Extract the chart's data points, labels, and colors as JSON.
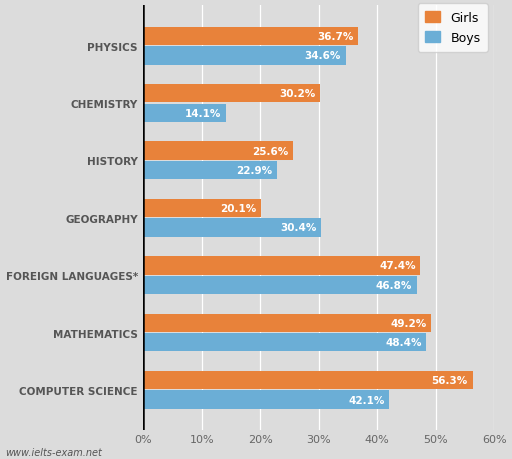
{
  "categories": [
    "PHYSICS",
    "CHEMISTRY",
    "HISTORY",
    "GEOGRAPHY",
    "FOREIGN LANGUAGES*",
    "MATHEMATICS",
    "COMPUTER SCIENCE"
  ],
  "girls_values": [
    36.7,
    30.2,
    25.6,
    20.1,
    47.4,
    49.2,
    56.3
  ],
  "boys_values": [
    34.6,
    14.1,
    22.9,
    30.4,
    46.8,
    48.4,
    42.1
  ],
  "girls_color": "#E8823A",
  "boys_color": "#6BAED6",
  "girls_label": "Girls",
  "boys_label": "Boys",
  "xlim": [
    0,
    60
  ],
  "xtick_values": [
    0,
    10,
    20,
    30,
    40,
    50,
    60
  ],
  "xtick_labels": [
    "0%",
    "10%",
    "20%",
    "30%",
    "40%",
    "50%",
    "60%"
  ],
  "bg_color": "#DCDCDC",
  "plot_bg_color": "#DCDCDC",
  "watermark": "www.ielts-exam.net",
  "bar_height": 0.32,
  "label_fontsize": 7.5,
  "category_fontsize": 7.5,
  "legend_fontsize": 9,
  "tick_fontsize": 8
}
